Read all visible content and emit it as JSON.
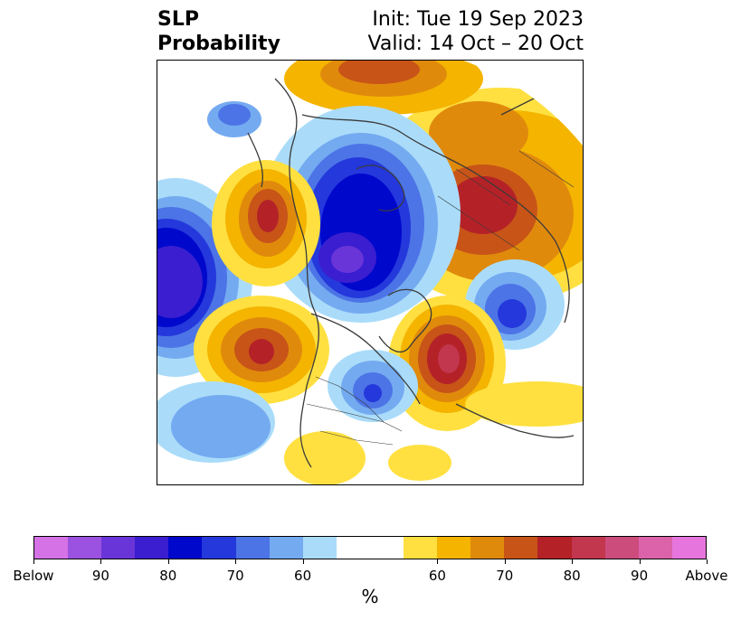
{
  "title": {
    "left_line1": "SLP",
    "left_line2": "Probability",
    "right_line1": "Init: Tue 19 Sep 2023",
    "right_line2": "Valid: 14 Oct – 20 Oct"
  },
  "colorbar": {
    "label": "%",
    "colors": [
      "#d472e6",
      "#9b52e0",
      "#6a35d8",
      "#3a1ed0",
      "#0008cc",
      "#2438dc",
      "#4c74e6",
      "#74aaf0",
      "#aadcfa",
      "#ffffff",
      "#ffffff",
      "#ffe040",
      "#f4b400",
      "#e08a0c",
      "#c85418",
      "#b42228",
      "#c2364e",
      "#cc4c7c",
      "#dc62aa",
      "#e676de"
    ],
    "tick_labels": [
      "Below",
      "90",
      "80",
      "70",
      "60",
      "60",
      "70",
      "80",
      "90",
      "Above"
    ]
  },
  "map": {
    "projection": "polar stereographic",
    "region": "Northern Hemisphere"
  }
}
